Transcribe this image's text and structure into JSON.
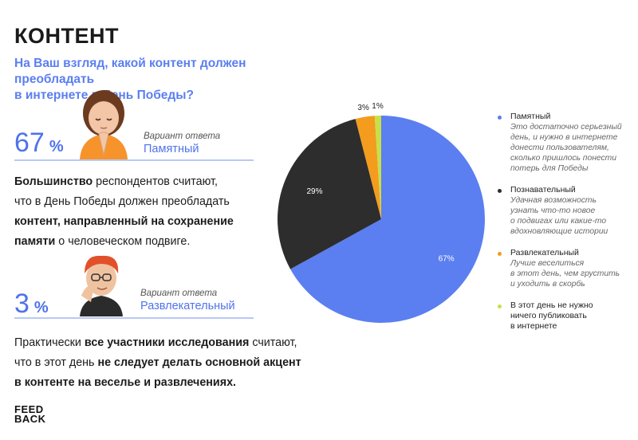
{
  "header": {
    "title": "КОНТЕНТ",
    "question_line1": "На Ваш взгляд, какой контент должен преобладать",
    "question_line2": "в интернете в День Победы?"
  },
  "stat_memorial": {
    "value": "67",
    "pct": "%",
    "caption": "Вариант ответа",
    "answer": "Памятный"
  },
  "paragraph1": {
    "l1_bold": "Большинство",
    "l1_rest": " респондентов считают,",
    "l2": "что в День Победы должен преобладать",
    "l3_bold": "контент, направленный на сохранение",
    "l4_bold": "памяти",
    "l4_rest": " о человеческом подвиге."
  },
  "stat_fun": {
    "value": "3",
    "pct": "%",
    "caption": "Вариант ответа",
    "answer": "Развлекательный"
  },
  "paragraph2": {
    "l1_a": "Практически ",
    "l1_bold": "все участники исследования",
    "l1_b": " считают,",
    "l2_a": "что в этот день ",
    "l2_bold": "не следует делать основной акцент",
    "l3_bold": "в контенте на веселье и развлечениях."
  },
  "logo": {
    "line1": "FEED",
    "line2": "BACK"
  },
  "legend": [
    {
      "name": "Памятный",
      "desc": [
        "Это достаточно серьезный",
        "день, и нужно в интернете",
        "донести пользователям,",
        "сколько пришлось понести",
        "потерь для Победы"
      ]
    },
    {
      "name": "Познавательный",
      "desc": [
        "Удачная возможность",
        "узнать что-то новое",
        "о подвигах или какие-то",
        "вдохновляющие истории"
      ]
    },
    {
      "name": "Развлекательный",
      "desc": [
        "Лучше веселиться",
        "в этот день, чем грустить",
        "и уходить в скорбь"
      ]
    },
    {
      "name": "В этот день не нужно ничего публиковать в интернете",
      "name_lines": [
        "В этот день не нужно",
        "ничего публиковать",
        "в интернете"
      ],
      "desc": []
    }
  ],
  "chart_data": {
    "type": "pie",
    "slices": [
      {
        "label": "Памятный",
        "value": 67,
        "text": "67%",
        "color": "#5b7ff0"
      },
      {
        "label": "Познавательный",
        "value": 29,
        "text": "29%",
        "color": "#2d2d2d"
      },
      {
        "label": "Развлекательный",
        "value": 3,
        "text": "3%",
        "color": "#f39c1e"
      },
      {
        "label": "В этот день не нужно ничего публиковать в интернете",
        "value": 1,
        "text": "1%",
        "color": "#c7e04a"
      }
    ]
  }
}
